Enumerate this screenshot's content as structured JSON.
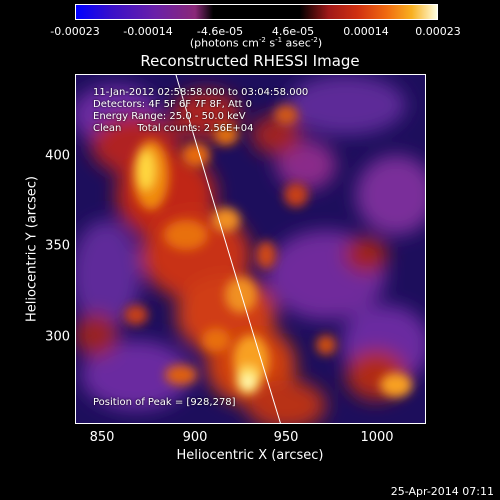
{
  "colorbar": {
    "ticks": [
      "-0.00023",
      "-0.00014",
      "-4.6e-05",
      "4.6e-05",
      "0.00014",
      "0.00023"
    ],
    "units_main": "(photons cm",
    "units_exp1": "-2",
    "units_mid": " s",
    "units_exp2": "-1",
    "units_tail": " asec",
    "units_exp3": "-2",
    "units_close": ")"
  },
  "title": "Reconstructed RHESSI Image",
  "annotations": {
    "time_range": "11-Jan-2012 02:58:58.000 to 03:04:58.000",
    "detectors": "Detectors: 4F 5F 6F 7F 8F, Att 0",
    "energy": "Energy Range: 25.0 - 50.0 keV",
    "clean": "Clean     Total counts: 2.56E+04",
    "peak": "Position of Peak = [928,278]"
  },
  "axes": {
    "xlabel": "Heliocentric X (arcsec)",
    "ylabel": "Heliocentric Y (arcsec)",
    "xticks": [
      "850",
      "900",
      "950",
      "1000"
    ],
    "yticks": [
      "300",
      "350",
      "400"
    ]
  },
  "footer": {
    "date": "25-Apr-2014 07:11"
  },
  "colors": {
    "background": "#000000",
    "frame": "#ffffff"
  }
}
